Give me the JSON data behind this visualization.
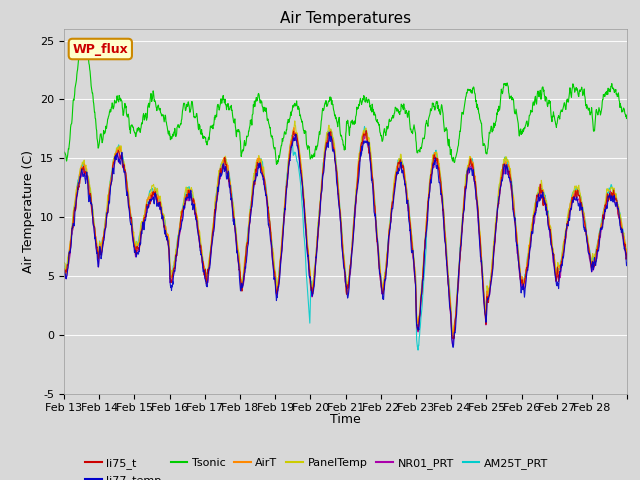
{
  "title": "Air Temperatures",
  "xlabel": "Time",
  "ylabel": "Air Temperature (C)",
  "ylim": [
    -5,
    26
  ],
  "yticks": [
    -5,
    0,
    5,
    10,
    15,
    20,
    25
  ],
  "x_labels": [
    "Feb 13",
    "Feb 14",
    "Feb 15",
    "Feb 16",
    "Feb 17",
    "Feb 18",
    "Feb 19",
    "Feb 20",
    "Feb 21",
    "Feb 22",
    "Feb 23",
    "Feb 24",
    "Feb 25",
    "Feb 26",
    "Feb 27",
    "Feb 28"
  ],
  "series": [
    {
      "name": "li75_t",
      "color": "#cc0000"
    },
    {
      "name": "li77_temp",
      "color": "#0000cc"
    },
    {
      "name": "Tsonic",
      "color": "#00cc00"
    },
    {
      "name": "AirT",
      "color": "#ff8800"
    },
    {
      "name": "PanelTemp",
      "color": "#cccc00"
    },
    {
      "name": "NR01_PRT",
      "color": "#aa00aa"
    },
    {
      "name": "AM25T_PRT",
      "color": "#00cccc"
    }
  ],
  "wp_flux_label": "WP_flux",
  "wp_flux_color": "#cc0000",
  "wp_flux_bg": "#ffffcc",
  "wp_flux_border": "#cc8800",
  "fig_bg": "#d8d8d8",
  "plot_bg": "#d8d8d8",
  "title_fontsize": 11,
  "axis_fontsize": 9,
  "tick_fontsize": 8,
  "legend_fontsize": 8,
  "n_days": 16,
  "pts_per_day": 96
}
